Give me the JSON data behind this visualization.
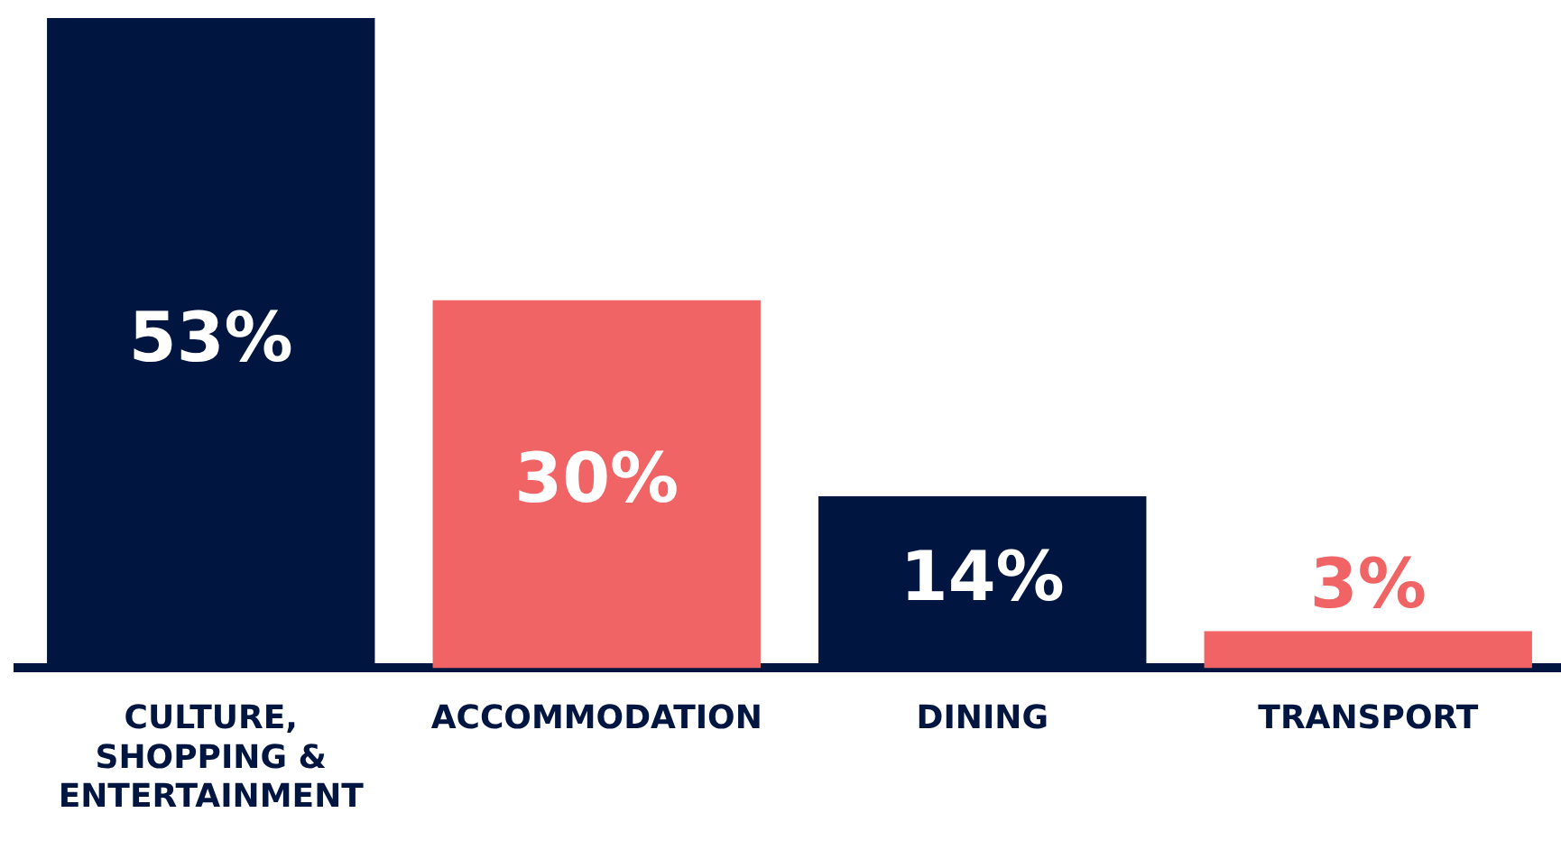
{
  "chart_data": {
    "type": "bar",
    "categories": [
      "CULTURE, SHOPPING & ENTERTAINMENT",
      "ACCOMMODATION",
      "DINING",
      "TRANSPORT"
    ],
    "values": [
      53,
      30,
      14,
      3
    ],
    "colors": [
      "#001540",
      "#f06465",
      "#001540",
      "#f06465"
    ],
    "value_labels": [
      "53%",
      "30%",
      "14%",
      "3%"
    ],
    "ylim": [
      0,
      53
    ],
    "grid": false,
    "legend": false
  }
}
